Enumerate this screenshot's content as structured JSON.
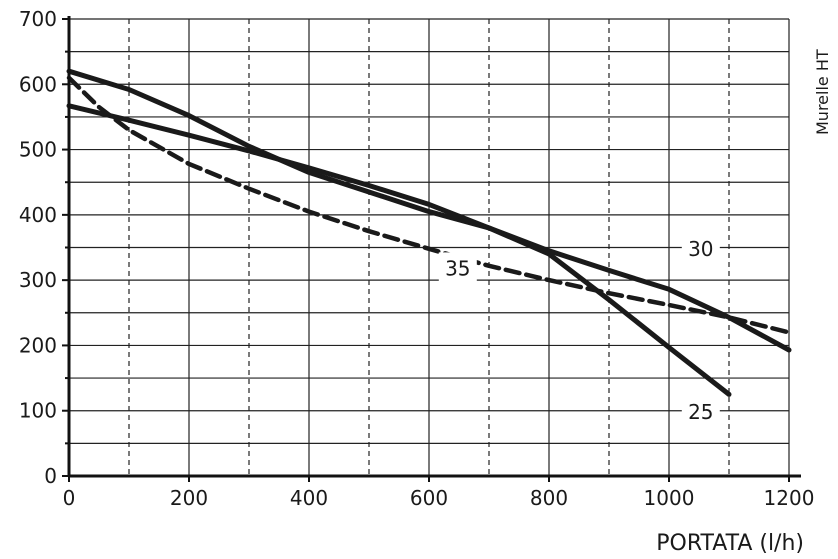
{
  "chart_data": {
    "type": "line",
    "xlabel": "PORTATA (l/h)",
    "ylabel": "",
    "side_label": "Murelle HT",
    "xlim": [
      0,
      1200
    ],
    "ylim": [
      0,
      700
    ],
    "x_ticks": [
      0,
      200,
      400,
      600,
      800,
      1000,
      1200
    ],
    "y_ticks": [
      0,
      100,
      200,
      300,
      400,
      500,
      600,
      700
    ],
    "x_dashed_grid": [
      100,
      300,
      500,
      700,
      900,
      1100
    ],
    "y_minor_grid": [
      50,
      150,
      250,
      350,
      450,
      550,
      650
    ],
    "grid": true,
    "series": [
      {
        "name": "25",
        "style": "solid",
        "x": [
          0,
          100,
          200,
          300,
          400,
          500,
          600,
          700,
          800,
          900,
          1000,
          1100
        ],
        "y": [
          620,
          592,
          552,
          505,
          465,
          435,
          405,
          380,
          340,
          270,
          197,
          125
        ],
        "label_x": 1053,
        "label_y": 98
      },
      {
        "name": "30",
        "style": "solid",
        "x": [
          0,
          100,
          200,
          300,
          400,
          500,
          600,
          700,
          800,
          900,
          1000,
          1100,
          1200
        ],
        "y": [
          567,
          545,
          522,
          498,
          472,
          445,
          416,
          380,
          345,
          315,
          286,
          243,
          193
        ],
        "label_x": 1053,
        "label_y": 348
      },
      {
        "name": "35",
        "style": "dashed",
        "x": [
          0,
          50,
          100,
          200,
          300,
          400,
          500,
          600,
          700,
          800,
          900,
          1000,
          1100,
          1200
        ],
        "y": [
          610,
          565,
          530,
          478,
          440,
          405,
          375,
          348,
          322,
          300,
          280,
          262,
          243,
          220
        ],
        "label_x": 648,
        "label_y": 318
      }
    ]
  }
}
